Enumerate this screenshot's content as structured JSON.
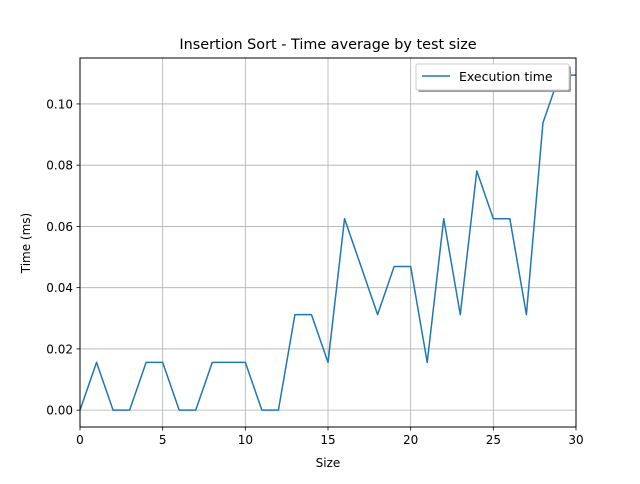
{
  "chart_data": {
    "type": "line",
    "title": "Insertion Sort - Time average by test size",
    "xlabel": "Size",
    "ylabel": "Time (ms)",
    "xlim": [
      0,
      30
    ],
    "ylim": [
      -0.0055,
      0.115
    ],
    "xticks": [
      0,
      5,
      10,
      15,
      20,
      25,
      30
    ],
    "xtick_labels": [
      "0",
      "5",
      "10",
      "15",
      "20",
      "25",
      "30"
    ],
    "yticks": [
      0.0,
      0.02,
      0.04,
      0.06,
      0.08,
      0.1
    ],
    "ytick_labels": [
      "0.00",
      "0.02",
      "0.04",
      "0.06",
      "0.08",
      "0.10"
    ],
    "grid": true,
    "legend_position": "top-right",
    "series": [
      {
        "name": "Execution time",
        "color": "#1f77b4",
        "x": [
          0,
          1,
          2,
          3,
          4,
          5,
          6,
          7,
          8,
          9,
          10,
          11,
          12,
          13,
          14,
          15,
          16,
          17,
          18,
          19,
          20,
          21,
          22,
          23,
          24,
          25,
          26,
          27,
          28,
          29,
          30
        ],
        "y": [
          0.0,
          0.0156,
          0.0,
          0.0,
          0.0156,
          0.0156,
          0.0,
          0.0,
          0.0156,
          0.0156,
          0.0156,
          0.0,
          0.0,
          0.0312,
          0.0312,
          0.0156,
          0.0625,
          0.0469,
          0.0312,
          0.0469,
          0.0469,
          0.0156,
          0.0625,
          0.0312,
          0.0781,
          0.0625,
          0.0625,
          0.0312,
          0.0938,
          0.1094,
          0.1094
        ]
      }
    ]
  }
}
